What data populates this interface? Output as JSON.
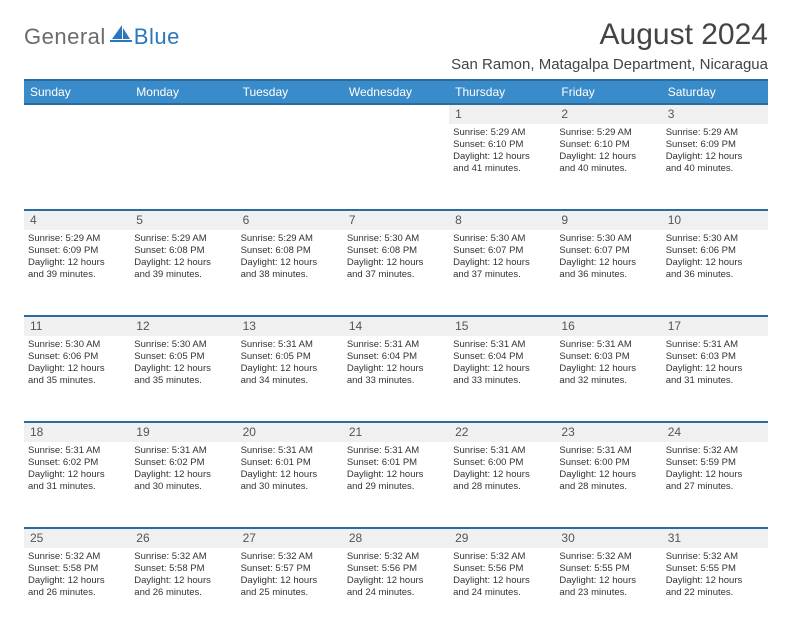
{
  "logo": {
    "general": "General",
    "blue": "Blue"
  },
  "title": "August 2024",
  "location": "San Ramon, Matagalpa Department, Nicaragua",
  "colors": {
    "header_bg": "#3a8bc9",
    "header_border": "#2b6ca0",
    "daynum_bg": "#f0f0f0",
    "text": "#333333",
    "logo_gray": "#6b6b6b",
    "logo_blue": "#2b77bd"
  },
  "day_headers": [
    "Sunday",
    "Monday",
    "Tuesday",
    "Wednesday",
    "Thursday",
    "Friday",
    "Saturday"
  ],
  "weeks": [
    {
      "nums": [
        "",
        "",
        "",
        "",
        "1",
        "2",
        "3"
      ],
      "cells": [
        null,
        null,
        null,
        null,
        {
          "sunrise": "5:29 AM",
          "sunset": "6:10 PM",
          "daylight": "12 hours and 41 minutes."
        },
        {
          "sunrise": "5:29 AM",
          "sunset": "6:10 PM",
          "daylight": "12 hours and 40 minutes."
        },
        {
          "sunrise": "5:29 AM",
          "sunset": "6:09 PM",
          "daylight": "12 hours and 40 minutes."
        }
      ]
    },
    {
      "nums": [
        "4",
        "5",
        "6",
        "7",
        "8",
        "9",
        "10"
      ],
      "cells": [
        {
          "sunrise": "5:29 AM",
          "sunset": "6:09 PM",
          "daylight": "12 hours and 39 minutes."
        },
        {
          "sunrise": "5:29 AM",
          "sunset": "6:08 PM",
          "daylight": "12 hours and 39 minutes."
        },
        {
          "sunrise": "5:29 AM",
          "sunset": "6:08 PM",
          "daylight": "12 hours and 38 minutes."
        },
        {
          "sunrise": "5:30 AM",
          "sunset": "6:08 PM",
          "daylight": "12 hours and 37 minutes."
        },
        {
          "sunrise": "5:30 AM",
          "sunset": "6:07 PM",
          "daylight": "12 hours and 37 minutes."
        },
        {
          "sunrise": "5:30 AM",
          "sunset": "6:07 PM",
          "daylight": "12 hours and 36 minutes."
        },
        {
          "sunrise": "5:30 AM",
          "sunset": "6:06 PM",
          "daylight": "12 hours and 36 minutes."
        }
      ]
    },
    {
      "nums": [
        "11",
        "12",
        "13",
        "14",
        "15",
        "16",
        "17"
      ],
      "cells": [
        {
          "sunrise": "5:30 AM",
          "sunset": "6:06 PM",
          "daylight": "12 hours and 35 minutes."
        },
        {
          "sunrise": "5:30 AM",
          "sunset": "6:05 PM",
          "daylight": "12 hours and 35 minutes."
        },
        {
          "sunrise": "5:31 AM",
          "sunset": "6:05 PM",
          "daylight": "12 hours and 34 minutes."
        },
        {
          "sunrise": "5:31 AM",
          "sunset": "6:04 PM",
          "daylight": "12 hours and 33 minutes."
        },
        {
          "sunrise": "5:31 AM",
          "sunset": "6:04 PM",
          "daylight": "12 hours and 33 minutes."
        },
        {
          "sunrise": "5:31 AM",
          "sunset": "6:03 PM",
          "daylight": "12 hours and 32 minutes."
        },
        {
          "sunrise": "5:31 AM",
          "sunset": "6:03 PM",
          "daylight": "12 hours and 31 minutes."
        }
      ]
    },
    {
      "nums": [
        "18",
        "19",
        "20",
        "21",
        "22",
        "23",
        "24"
      ],
      "cells": [
        {
          "sunrise": "5:31 AM",
          "sunset": "6:02 PM",
          "daylight": "12 hours and 31 minutes."
        },
        {
          "sunrise": "5:31 AM",
          "sunset": "6:02 PM",
          "daylight": "12 hours and 30 minutes."
        },
        {
          "sunrise": "5:31 AM",
          "sunset": "6:01 PM",
          "daylight": "12 hours and 30 minutes."
        },
        {
          "sunrise": "5:31 AM",
          "sunset": "6:01 PM",
          "daylight": "12 hours and 29 minutes."
        },
        {
          "sunrise": "5:31 AM",
          "sunset": "6:00 PM",
          "daylight": "12 hours and 28 minutes."
        },
        {
          "sunrise": "5:31 AM",
          "sunset": "6:00 PM",
          "daylight": "12 hours and 28 minutes."
        },
        {
          "sunrise": "5:32 AM",
          "sunset": "5:59 PM",
          "daylight": "12 hours and 27 minutes."
        }
      ]
    },
    {
      "nums": [
        "25",
        "26",
        "27",
        "28",
        "29",
        "30",
        "31"
      ],
      "cells": [
        {
          "sunrise": "5:32 AM",
          "sunset": "5:58 PM",
          "daylight": "12 hours and 26 minutes."
        },
        {
          "sunrise": "5:32 AM",
          "sunset": "5:58 PM",
          "daylight": "12 hours and 26 minutes."
        },
        {
          "sunrise": "5:32 AM",
          "sunset": "5:57 PM",
          "daylight": "12 hours and 25 minutes."
        },
        {
          "sunrise": "5:32 AM",
          "sunset": "5:56 PM",
          "daylight": "12 hours and 24 minutes."
        },
        {
          "sunrise": "5:32 AM",
          "sunset": "5:56 PM",
          "daylight": "12 hours and 24 minutes."
        },
        {
          "sunrise": "5:32 AM",
          "sunset": "5:55 PM",
          "daylight": "12 hours and 23 minutes."
        },
        {
          "sunrise": "5:32 AM",
          "sunset": "5:55 PM",
          "daylight": "12 hours and 22 minutes."
        }
      ]
    }
  ],
  "labels": {
    "sunrise": "Sunrise:",
    "sunset": "Sunset:",
    "daylight": "Daylight:"
  }
}
